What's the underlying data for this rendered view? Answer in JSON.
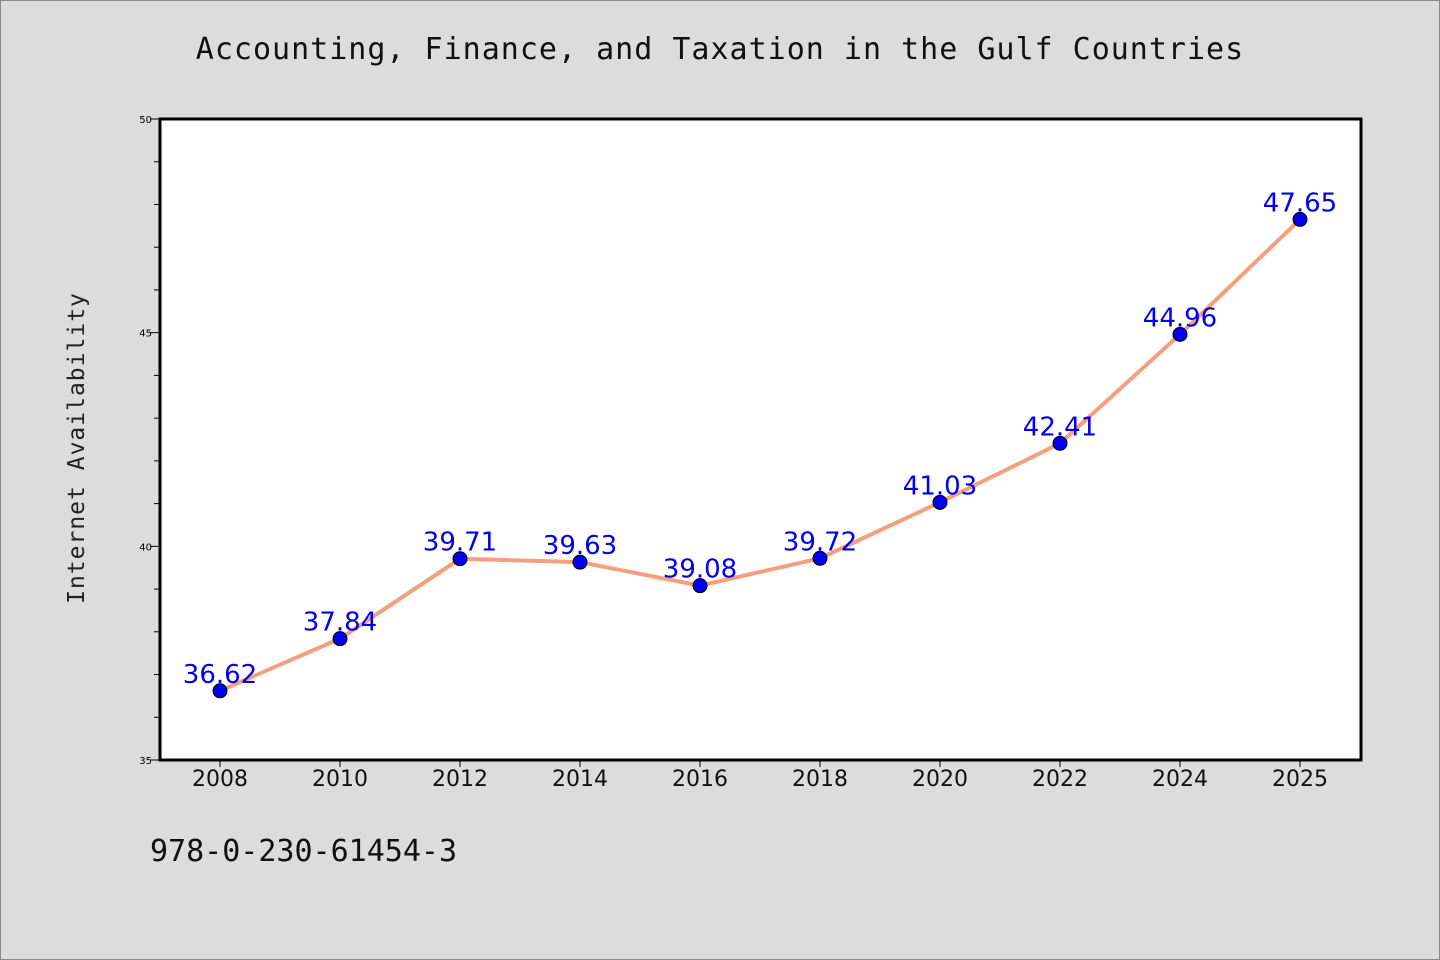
{
  "title": "Accounting, Finance, and Taxation in the Gulf Countries",
  "ylabel": "Internet Availability",
  "footer": "978-0-230-61454-3",
  "colors": {
    "background": "#dcdcdc",
    "plot_background": "#ffffff",
    "line": "#f4a07e",
    "marker": "#0000ee",
    "data_label": "#0000ee"
  },
  "chart_data": {
    "type": "line",
    "title": "Accounting, Finance, and Taxation in the Gulf Countries",
    "xlabel": "",
    "ylabel": "Internet Availability",
    "categories": [
      "2008",
      "2010",
      "2012",
      "2014",
      "2016",
      "2018",
      "2020",
      "2022",
      "2024",
      "2025"
    ],
    "values": [
      36.62,
      37.84,
      39.71,
      39.63,
      39.08,
      39.72,
      41.03,
      42.41,
      44.96,
      47.65
    ],
    "data_labels": [
      "36.62",
      "37.84",
      "39.71",
      "39.63",
      "39.08",
      "39.72",
      "41.03",
      "42.41",
      "44.96",
      "47.65"
    ],
    "ylim": [
      35,
      50
    ],
    "yticks": [
      35,
      40,
      45,
      50
    ],
    "grid": false,
    "legend": "none"
  }
}
